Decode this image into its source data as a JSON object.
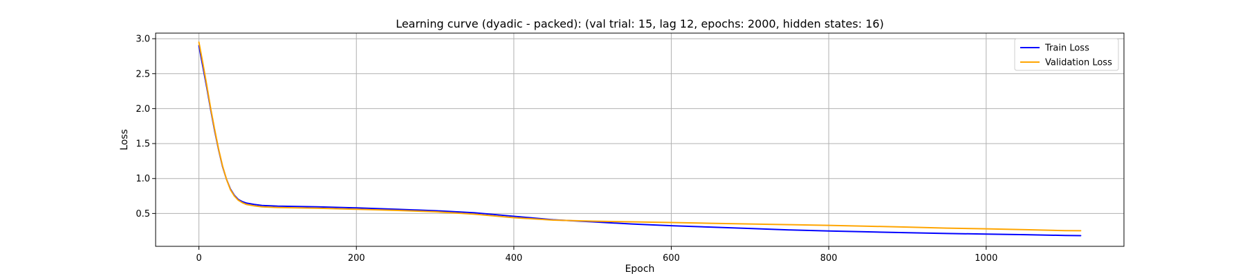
{
  "chart_data": {
    "type": "line",
    "title": "Learning curve (dyadic - packed): (val trial: 15, lag 12, epochs: 2000, hidden states: 16)",
    "xlabel": "Epoch",
    "ylabel": "Loss",
    "xlim": [
      -55,
      1175
    ],
    "ylim": [
      0.03,
      3.08
    ],
    "xticks": [
      0,
      200,
      400,
      600,
      800,
      1000
    ],
    "xtick_labels": [
      "0",
      "200",
      "400",
      "600",
      "800",
      "1000"
    ],
    "yticks": [
      0.5,
      1.0,
      1.5,
      2.0,
      2.5,
      3.0
    ],
    "ytick_labels": [
      "0.5",
      "1.0",
      "1.5",
      "2.0",
      "2.5",
      "3.0"
    ],
    "grid": true,
    "legend_position": "top-right",
    "series": [
      {
        "name": "Train Loss",
        "color": "#0000ff",
        "x": [
          0,
          5,
          10,
          15,
          20,
          25,
          30,
          35,
          40,
          45,
          50,
          55,
          60,
          70,
          80,
          90,
          100,
          150,
          200,
          250,
          300,
          350,
          400,
          450,
          500,
          550,
          600,
          650,
          700,
          750,
          800,
          850,
          900,
          950,
          1000,
          1050,
          1100,
          1120
        ],
        "y": [
          2.9,
          2.6,
          2.3,
          1.98,
          1.68,
          1.41,
          1.17,
          0.99,
          0.85,
          0.76,
          0.7,
          0.67,
          0.65,
          0.63,
          0.615,
          0.61,
          0.605,
          0.595,
          0.58,
          0.56,
          0.54,
          0.51,
          0.46,
          0.41,
          0.38,
          0.35,
          0.325,
          0.305,
          0.285,
          0.265,
          0.25,
          0.237,
          0.225,
          0.214,
          0.205,
          0.196,
          0.186,
          0.183
        ]
      },
      {
        "name": "Validation Loss",
        "color": "#ffa500",
        "x": [
          0,
          5,
          10,
          15,
          20,
          25,
          30,
          35,
          40,
          45,
          50,
          55,
          60,
          70,
          80,
          90,
          100,
          150,
          200,
          250,
          300,
          350,
          400,
          450,
          500,
          550,
          600,
          650,
          700,
          750,
          800,
          850,
          900,
          950,
          1000,
          1050,
          1100,
          1120
        ],
        "y": [
          2.95,
          2.65,
          2.33,
          2.0,
          1.7,
          1.42,
          1.18,
          0.99,
          0.84,
          0.75,
          0.69,
          0.655,
          0.63,
          0.61,
          0.595,
          0.59,
          0.585,
          0.575,
          0.56,
          0.545,
          0.525,
          0.49,
          0.44,
          0.405,
          0.39,
          0.38,
          0.37,
          0.36,
          0.35,
          0.34,
          0.33,
          0.318,
          0.305,
          0.29,
          0.28,
          0.268,
          0.255,
          0.253
        ]
      }
    ]
  }
}
